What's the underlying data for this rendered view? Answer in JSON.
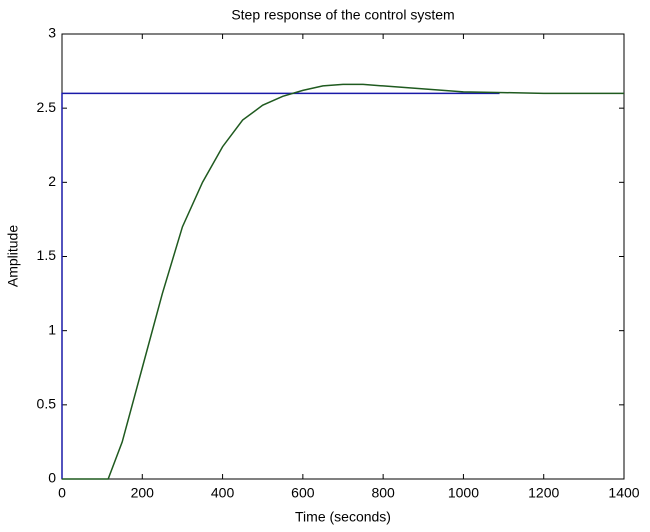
{
  "chart_data": {
    "type": "line",
    "title": "Step response of the control system",
    "xlabel": "Time (seconds)",
    "ylabel": "Amplitude",
    "xlim": [
      0,
      1400
    ],
    "xticks": [
      0,
      200,
      400,
      600,
      800,
      1000,
      1200,
      1400
    ],
    "ylim": [
      0,
      3
    ],
    "yticks": [
      0,
      0.5,
      1,
      1.5,
      2,
      2.5,
      3
    ],
    "grid": false,
    "series": [
      {
        "color": "#1a1aa8",
        "x": [
          0,
          0,
          1090
        ],
        "values": [
          0,
          2.6,
          2.6
        ]
      },
      {
        "color": "#1f5a1f",
        "x": [
          0,
          115,
          150,
          200,
          250,
          300,
          350,
          400,
          450,
          500,
          550,
          600,
          650,
          700,
          750,
          800,
          900,
          1000,
          1100,
          1200,
          1400
        ],
        "values": [
          0,
          0,
          0.25,
          0.75,
          1.25,
          1.7,
          2.0,
          2.24,
          2.42,
          2.52,
          2.58,
          2.62,
          2.65,
          2.66,
          2.66,
          2.65,
          2.63,
          2.61,
          2.605,
          2.6,
          2.6
        ]
      }
    ]
  }
}
